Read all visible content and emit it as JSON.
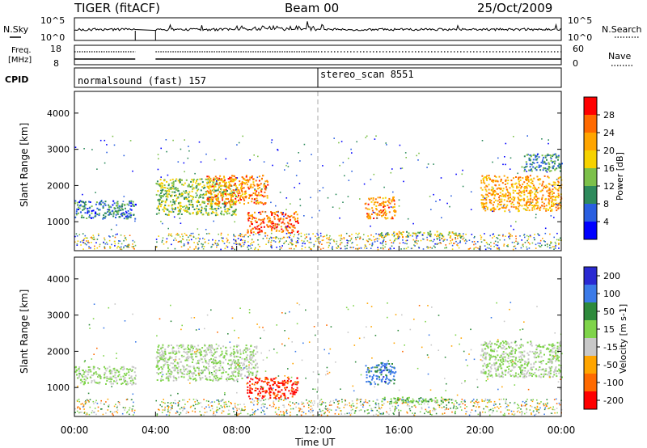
{
  "header": {
    "radar": "TIGER (fitACF)",
    "beam": "Beam 00",
    "date": "25/Oct/2009"
  },
  "noise_panel": {
    "left_label": "N.Sky",
    "right_label": "N.Search",
    "left_ticks": [
      "10^5",
      "10^0"
    ],
    "right_ticks": [
      "10^5",
      "10^0"
    ]
  },
  "freq_panel": {
    "left_label_1": "Freq.",
    "left_label_2": "[MHz]",
    "right_label": "Nave",
    "left_ticks": [
      "18",
      "8"
    ],
    "right_ticks": [
      "60",
      "0"
    ]
  },
  "cpid_panel": {
    "label": "CPID",
    "segments": [
      {
        "name": "normalsound (fast) 157",
        "start_hour": 0,
        "end_hour": 12
      },
      {
        "name": "stereo_scan 8551",
        "start_hour": 12,
        "end_hour": 24
      }
    ]
  },
  "chart_data": [
    {
      "type": "heatmap",
      "parameter": "power",
      "xlabel": "",
      "ylabel": "Slant Range [km]",
      "xlim": [
        0,
        24
      ],
      "ylim": [
        200,
        4600
      ],
      "y_ticks": [
        1000,
        2000,
        3000,
        4000
      ],
      "colorbar": {
        "label": "Power [dB]",
        "range": [
          0,
          32
        ],
        "ticks": [
          "4",
          "8",
          "12",
          "16",
          "20",
          "24",
          "28"
        ],
        "colors": [
          "#0000ff",
          "#2a5fe0",
          "#2e8a5c",
          "#7cc04a",
          "#f6d200",
          "#ffa500",
          "#ff6a00",
          "#ff0000"
        ]
      },
      "data_gap_hours": [
        3.0,
        4.0
      ],
      "echo_regions": [
        {
          "x": [
            0.0,
            3.0
          ],
          "y_km": [
            1100,
            1600
          ],
          "value_db": 8
        },
        {
          "x": [
            4.0,
            8.0
          ],
          "y_km": [
            1200,
            2200
          ],
          "value_db": 14
        },
        {
          "x": [
            6.5,
            9.5
          ],
          "y_km": [
            1500,
            2300
          ],
          "value_db": 24
        },
        {
          "x": [
            8.5,
            11.0
          ],
          "y_km": [
            700,
            1300
          ],
          "value_db": 26
        },
        {
          "x": [
            14.3,
            15.8
          ],
          "y_km": [
            1100,
            1700
          ],
          "value_db": 24
        },
        {
          "x": [
            15.0,
            19.0
          ],
          "y_km": [
            600,
            750
          ],
          "value_db": 16
        },
        {
          "x": [
            20.0,
            24.0
          ],
          "y_km": [
            1300,
            2300
          ],
          "value_db": 22
        },
        {
          "x": [
            22.0,
            24.0
          ],
          "y_km": [
            2400,
            2900
          ],
          "value_db": 10
        }
      ]
    },
    {
      "type": "heatmap",
      "parameter": "velocity",
      "xlabel": "Time UT",
      "ylabel": "Slant Range [km]",
      "xlim": [
        0,
        24
      ],
      "ylim": [
        200,
        4600
      ],
      "y_ticks": [
        1000,
        2000,
        3000,
        4000
      ],
      "x_ticks": [
        "00:00",
        "04:00",
        "08:00",
        "12:00",
        "16:00",
        "20:00",
        "00:00"
      ],
      "colorbar": {
        "label": "Velocity [m s-1]",
        "range": [
          -250,
          250
        ],
        "ticks": [
          "200",
          "100",
          "50",
          "15",
          "-15",
          "-50",
          "-100",
          "-200"
        ],
        "colors": [
          "#2a2ad2",
          "#3c7be8",
          "#2e8a3c",
          "#7fd44a",
          "#c8c8c8",
          "#ffa500",
          "#ff6a00",
          "#ff0000"
        ]
      },
      "data_gap_hours": [
        3.0,
        4.0
      ],
      "echo_regions": [
        {
          "x": [
            0.0,
            3.0
          ],
          "y_km": [
            1100,
            1600
          ],
          "value_ms": 0
        },
        {
          "x": [
            4.0,
            9.0
          ],
          "y_km": [
            1200,
            2200
          ],
          "value_ms": 0
        },
        {
          "x": [
            8.5,
            11.0
          ],
          "y_km": [
            700,
            1300
          ],
          "value_ms": -200
        },
        {
          "x": [
            14.3,
            15.8
          ],
          "y_km": [
            1100,
            1700
          ],
          "value_ms": 150
        },
        {
          "x": [
            15.0,
            19.0
          ],
          "y_km": [
            600,
            750
          ],
          "value_ms": 50
        },
        {
          "x": [
            20.0,
            24.0
          ],
          "y_km": [
            1300,
            2300
          ],
          "value_ms": 0
        }
      ]
    }
  ]
}
